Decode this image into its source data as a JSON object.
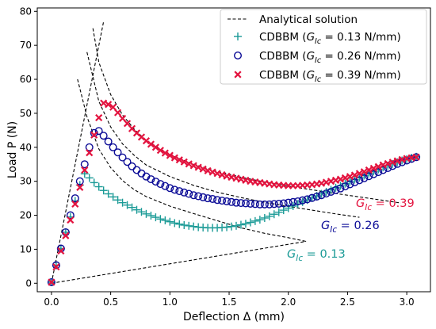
{
  "chart_data": {
    "type": "scatter",
    "xlabel": "Deflection Δ (mm)",
    "ylabel": "Load P (N)",
    "xlim": [
      -0.12,
      3.2
    ],
    "ylim": [
      -2.5,
      81
    ],
    "xticks": [
      0.0,
      0.5,
      1.0,
      1.5,
      2.0,
      2.5,
      3.0
    ],
    "xtick_labels": [
      "0.0",
      "0.5",
      "1.0",
      "1.5",
      "2.0",
      "2.5",
      "3.0"
    ],
    "yticks": [
      0,
      10,
      20,
      30,
      40,
      50,
      60,
      70,
      80
    ],
    "ytick_labels": [
      "0",
      "10",
      "20",
      "30",
      "40",
      "50",
      "60",
      "70",
      "80"
    ],
    "grid": false,
    "legend_position": "top-right",
    "analytical": {
      "name": "Analytical solution",
      "color": "#000000",
      "style": "dashed",
      "linear_branch": {
        "x": [
          0.0,
          0.44
        ],
        "y": [
          0.0,
          77.0
        ]
      },
      "unloading_line": {
        "x": [
          0.0,
          2.15
        ],
        "y": [
          0.0,
          12.3
        ]
      },
      "propagation_branches": [
        {
          "x": [
            0.22,
            0.3,
            0.4,
            0.5,
            0.6,
            0.7,
            0.8,
            1.0,
            1.2,
            1.4,
            1.6,
            1.8,
            2.0,
            2.15
          ],
          "y": [
            60.0,
            49.0,
            39.5,
            34.0,
            30.2,
            27.5,
            25.5,
            22.7,
            20.5,
            18.4,
            16.3,
            14.7,
            13.4,
            12.3
          ]
        },
        {
          "x": [
            0.3,
            0.4,
            0.5,
            0.6,
            0.7,
            0.8,
            1.0,
            1.2,
            1.4,
            1.6,
            1.8,
            2.0,
            2.2,
            2.4,
            2.6
          ],
          "y": [
            68.0,
            53.5,
            46.0,
            41.0,
            37.6,
            34.8,
            31.4,
            28.8,
            26.8,
            25.2,
            23.8,
            22.6,
            21.5,
            20.4,
            19.4
          ]
        },
        {
          "x": [
            0.35,
            0.4,
            0.5,
            0.6,
            0.7,
            0.8,
            1.0,
            1.2,
            1.4,
            1.6,
            1.8,
            2.0,
            2.2,
            2.4,
            2.6,
            2.8,
            2.95
          ],
          "y": [
            75.0,
            65.0,
            55.5,
            49.5,
            45.3,
            42.0,
            37.8,
            35.0,
            32.9,
            31.2,
            29.8,
            28.6,
            27.5,
            26.4,
            25.4,
            24.4,
            23.6
          ]
        }
      ]
    },
    "series": [
      {
        "name": "CDBBM (G_Ic = 0.13 N/mm)",
        "marker": "plus",
        "color": "#1a9a96",
        "label": "G_Ic = 0.13",
        "x": [
          0.0,
          0.04,
          0.08,
          0.12,
          0.16,
          0.2,
          0.24,
          0.28,
          0.32,
          0.36,
          0.4,
          0.44,
          0.48,
          0.52,
          0.56,
          0.6,
          0.64,
          0.68,
          0.72,
          0.76,
          0.8,
          0.84,
          0.88,
          0.92,
          0.96,
          1.0,
          1.04,
          1.08,
          1.12,
          1.16,
          1.2,
          1.24,
          1.28,
          1.32,
          1.36,
          1.4,
          1.44,
          1.48,
          1.52,
          1.56,
          1.6,
          1.64,
          1.68,
          1.72,
          1.76,
          1.8,
          1.84,
          1.88,
          1.92,
          1.96,
          2.0,
          2.04,
          2.08,
          2.12,
          2.16,
          2.2,
          2.24,
          2.28,
          2.32,
          2.36,
          2.4,
          2.44,
          2.48,
          2.52,
          2.56,
          2.6,
          2.64,
          2.68,
          2.72,
          2.76,
          2.8,
          2.84,
          2.88,
          2.92,
          2.96,
          3.0,
          3.04,
          3.08
        ],
        "y": [
          0.3,
          5.3,
          10.2,
          15.0,
          19.5,
          24.2,
          28.9,
          32.2,
          31.0,
          29.6,
          28.4,
          27.3,
          26.3,
          25.4,
          24.5,
          23.7,
          23.0,
          22.3,
          21.6,
          21.0,
          20.4,
          19.9,
          19.4,
          18.9,
          18.5,
          18.1,
          17.7,
          17.4,
          17.1,
          16.9,
          16.7,
          16.5,
          16.4,
          16.3,
          16.3,
          16.3,
          16.4,
          16.5,
          16.7,
          16.9,
          17.2,
          17.5,
          17.9,
          18.3,
          18.7,
          19.2,
          19.7,
          20.3,
          20.9,
          21.5,
          22.1,
          22.7,
          23.3,
          23.9,
          24.5,
          25.1,
          25.7,
          26.3,
          26.9,
          27.5,
          28.1,
          28.7,
          29.3,
          29.9,
          30.5,
          31.1,
          31.7,
          32.3,
          32.9,
          33.5,
          34.1,
          34.6,
          35.1,
          35.6,
          36.1,
          36.5,
          36.9,
          37.2
        ]
      },
      {
        "name": "CDBBM (G_Ic = 0.26 N/mm)",
        "marker": "circle",
        "color": "#0b0b96",
        "label": "G_Ic = 0.26",
        "x": [
          0.0,
          0.04,
          0.08,
          0.12,
          0.16,
          0.2,
          0.24,
          0.28,
          0.32,
          0.36,
          0.4,
          0.44,
          0.48,
          0.52,
          0.56,
          0.6,
          0.64,
          0.68,
          0.72,
          0.76,
          0.8,
          0.84,
          0.88,
          0.92,
          0.96,
          1.0,
          1.04,
          1.08,
          1.12,
          1.16,
          1.2,
          1.24,
          1.28,
          1.32,
          1.36,
          1.4,
          1.44,
          1.48,
          1.52,
          1.56,
          1.6,
          1.64,
          1.68,
          1.72,
          1.76,
          1.8,
          1.84,
          1.88,
          1.92,
          1.96,
          2.0,
          2.04,
          2.08,
          2.12,
          2.16,
          2.2,
          2.24,
          2.28,
          2.32,
          2.36,
          2.4,
          2.44,
          2.48,
          2.52,
          2.56,
          2.6,
          2.64,
          2.68,
          2.72,
          2.76,
          2.8,
          2.84,
          2.88,
          2.92,
          2.96,
          3.0,
          3.04,
          3.08
        ],
        "y": [
          0.3,
          5.3,
          10.2,
          15.0,
          20.0,
          25.0,
          30.0,
          35.0,
          40.0,
          44.2,
          44.8,
          43.4,
          41.7,
          40.0,
          38.5,
          37.0,
          35.7,
          34.4,
          33.3,
          32.3,
          31.4,
          30.6,
          29.9,
          29.2,
          28.6,
          28.0,
          27.5,
          27.1,
          26.7,
          26.3,
          25.9,
          25.6,
          25.3,
          25.0,
          24.8,
          24.5,
          24.3,
          24.1,
          23.9,
          23.7,
          23.6,
          23.5,
          23.4,
          23.3,
          23.2,
          23.2,
          23.2,
          23.3,
          23.4,
          23.5,
          23.7,
          23.9,
          24.1,
          24.4,
          24.7,
          25.1,
          25.5,
          25.9,
          26.4,
          26.9,
          27.4,
          27.9,
          28.5,
          29.1,
          29.7,
          30.3,
          30.9,
          31.5,
          32.1,
          32.7,
          33.3,
          33.9,
          34.5,
          35.1,
          35.6,
          36.1,
          36.6,
          37.1
        ]
      },
      {
        "name": "CDBBM (G_Ic = 0.39 N/mm)",
        "marker": "x",
        "color": "#e3143f",
        "label": "G_Ic = 0.39",
        "x": [
          0.0,
          0.04,
          0.08,
          0.12,
          0.16,
          0.2,
          0.24,
          0.28,
          0.32,
          0.36,
          0.4,
          0.44,
          0.48,
          0.52,
          0.56,
          0.6,
          0.64,
          0.68,
          0.72,
          0.76,
          0.8,
          0.84,
          0.88,
          0.92,
          0.96,
          1.0,
          1.04,
          1.08,
          1.12,
          1.16,
          1.2,
          1.24,
          1.28,
          1.32,
          1.36,
          1.4,
          1.44,
          1.48,
          1.52,
          1.56,
          1.6,
          1.64,
          1.68,
          1.72,
          1.76,
          1.8,
          1.84,
          1.88,
          1.92,
          1.96,
          2.0,
          2.04,
          2.08,
          2.12,
          2.16,
          2.2,
          2.24,
          2.28,
          2.32,
          2.36,
          2.4,
          2.44,
          2.48,
          2.52,
          2.56,
          2.6,
          2.64,
          2.68,
          2.72,
          2.76,
          2.8,
          2.84,
          2.88,
          2.92,
          2.96,
          3.0,
          3.04,
          3.08
        ],
        "y": [
          0.3,
          4.8,
          9.5,
          14.0,
          18.6,
          23.3,
          28.2,
          33.3,
          38.4,
          43.6,
          48.7,
          53.0,
          52.6,
          51.8,
          50.2,
          48.5,
          47.0,
          45.5,
          44.2,
          43.0,
          41.9,
          40.9,
          40.0,
          39.1,
          38.3,
          37.6,
          36.9,
          36.3,
          35.7,
          35.1,
          34.6,
          34.1,
          33.6,
          33.1,
          32.7,
          32.3,
          31.9,
          31.5,
          31.2,
          30.9,
          30.6,
          30.3,
          30.0,
          29.8,
          29.6,
          29.4,
          29.2,
          29.0,
          28.9,
          28.8,
          28.7,
          28.7,
          28.7,
          28.8,
          28.9,
          29.0,
          29.2,
          29.4,
          29.7,
          30.0,
          30.3,
          30.6,
          31.0,
          31.4,
          31.8,
          32.3,
          32.8,
          33.3,
          33.8,
          34.3,
          34.8,
          35.2,
          35.6,
          36.0,
          36.4,
          36.7,
          36.9,
          37.1
        ]
      }
    ]
  }
}
